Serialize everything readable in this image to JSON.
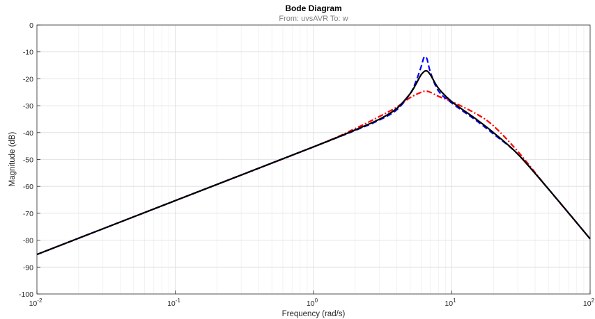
{
  "chart_data": {
    "type": "line",
    "title": "Bode Diagram",
    "subtitle": "From: uvsAVR  To: w",
    "xlabel": "Frequency  (rad/s)",
    "ylabel": "Magnitude (dB)",
    "xscale": "log",
    "xlim": [
      0.01,
      100
    ],
    "ylim": [
      -100,
      0
    ],
    "grid": true,
    "yticks": [
      0,
      -10,
      -20,
      -30,
      -40,
      -50,
      -60,
      -70,
      -80,
      -90,
      -100
    ],
    "yticklabels": [
      "0",
      "-10",
      "-20",
      "-30",
      "-40",
      "-50",
      "-60",
      "-70",
      "-80",
      "-90",
      "-100"
    ],
    "xticks": [
      {
        "value": 0.01,
        "base": "10",
        "exp": "-2"
      },
      {
        "value": 0.1,
        "base": "10",
        "exp": "-1"
      },
      {
        "value": 1,
        "base": "10",
        "exp": "0"
      },
      {
        "value": 10,
        "base": "10",
        "exp": "1"
      },
      {
        "value": 100,
        "base": "10",
        "exp": "2"
      }
    ],
    "series": [
      {
        "color": "#0000ff",
        "style": "dashed",
        "x": [
          0.01,
          0.1,
          1,
          2,
          3,
          4,
          5,
          5.5,
          6,
          6.3,
          6.6,
          7,
          8,
          10,
          15,
          20,
          30,
          50,
          100
        ],
        "y": [
          -85.3,
          -65.3,
          -45.3,
          -39.2,
          -35.3,
          -31.5,
          -25.5,
          -21,
          -15.5,
          -12,
          -12.5,
          -17.5,
          -24.5,
          -29,
          -35.5,
          -40.5,
          -48,
          -61,
          -79.5
        ]
      },
      {
        "color": "#ff0000",
        "style": "dashdot",
        "x": [
          0.01,
          0.1,
          1,
          2,
          3,
          4,
          5,
          6,
          6.5,
          7,
          8,
          10,
          15,
          20,
          30,
          50,
          100
        ],
        "y": [
          -85.3,
          -65.3,
          -45.3,
          -38.5,
          -34,
          -30.5,
          -27,
          -25,
          -24.6,
          -25,
          -26.5,
          -28.5,
          -33,
          -37.5,
          -47,
          -61,
          -79.5
        ]
      },
      {
        "color": "#000000",
        "style": "solid",
        "x": [
          0.01,
          0.1,
          1,
          2,
          3,
          4,
          5,
          5.5,
          6,
          6.5,
          7,
          8,
          10,
          15,
          20,
          30,
          50,
          100
        ],
        "y": [
          -85.3,
          -65.3,
          -45.3,
          -39,
          -35,
          -31,
          -25.5,
          -22,
          -18.5,
          -17,
          -18.5,
          -23.5,
          -28.5,
          -35,
          -40,
          -48,
          -61,
          -79.5
        ]
      }
    ]
  }
}
